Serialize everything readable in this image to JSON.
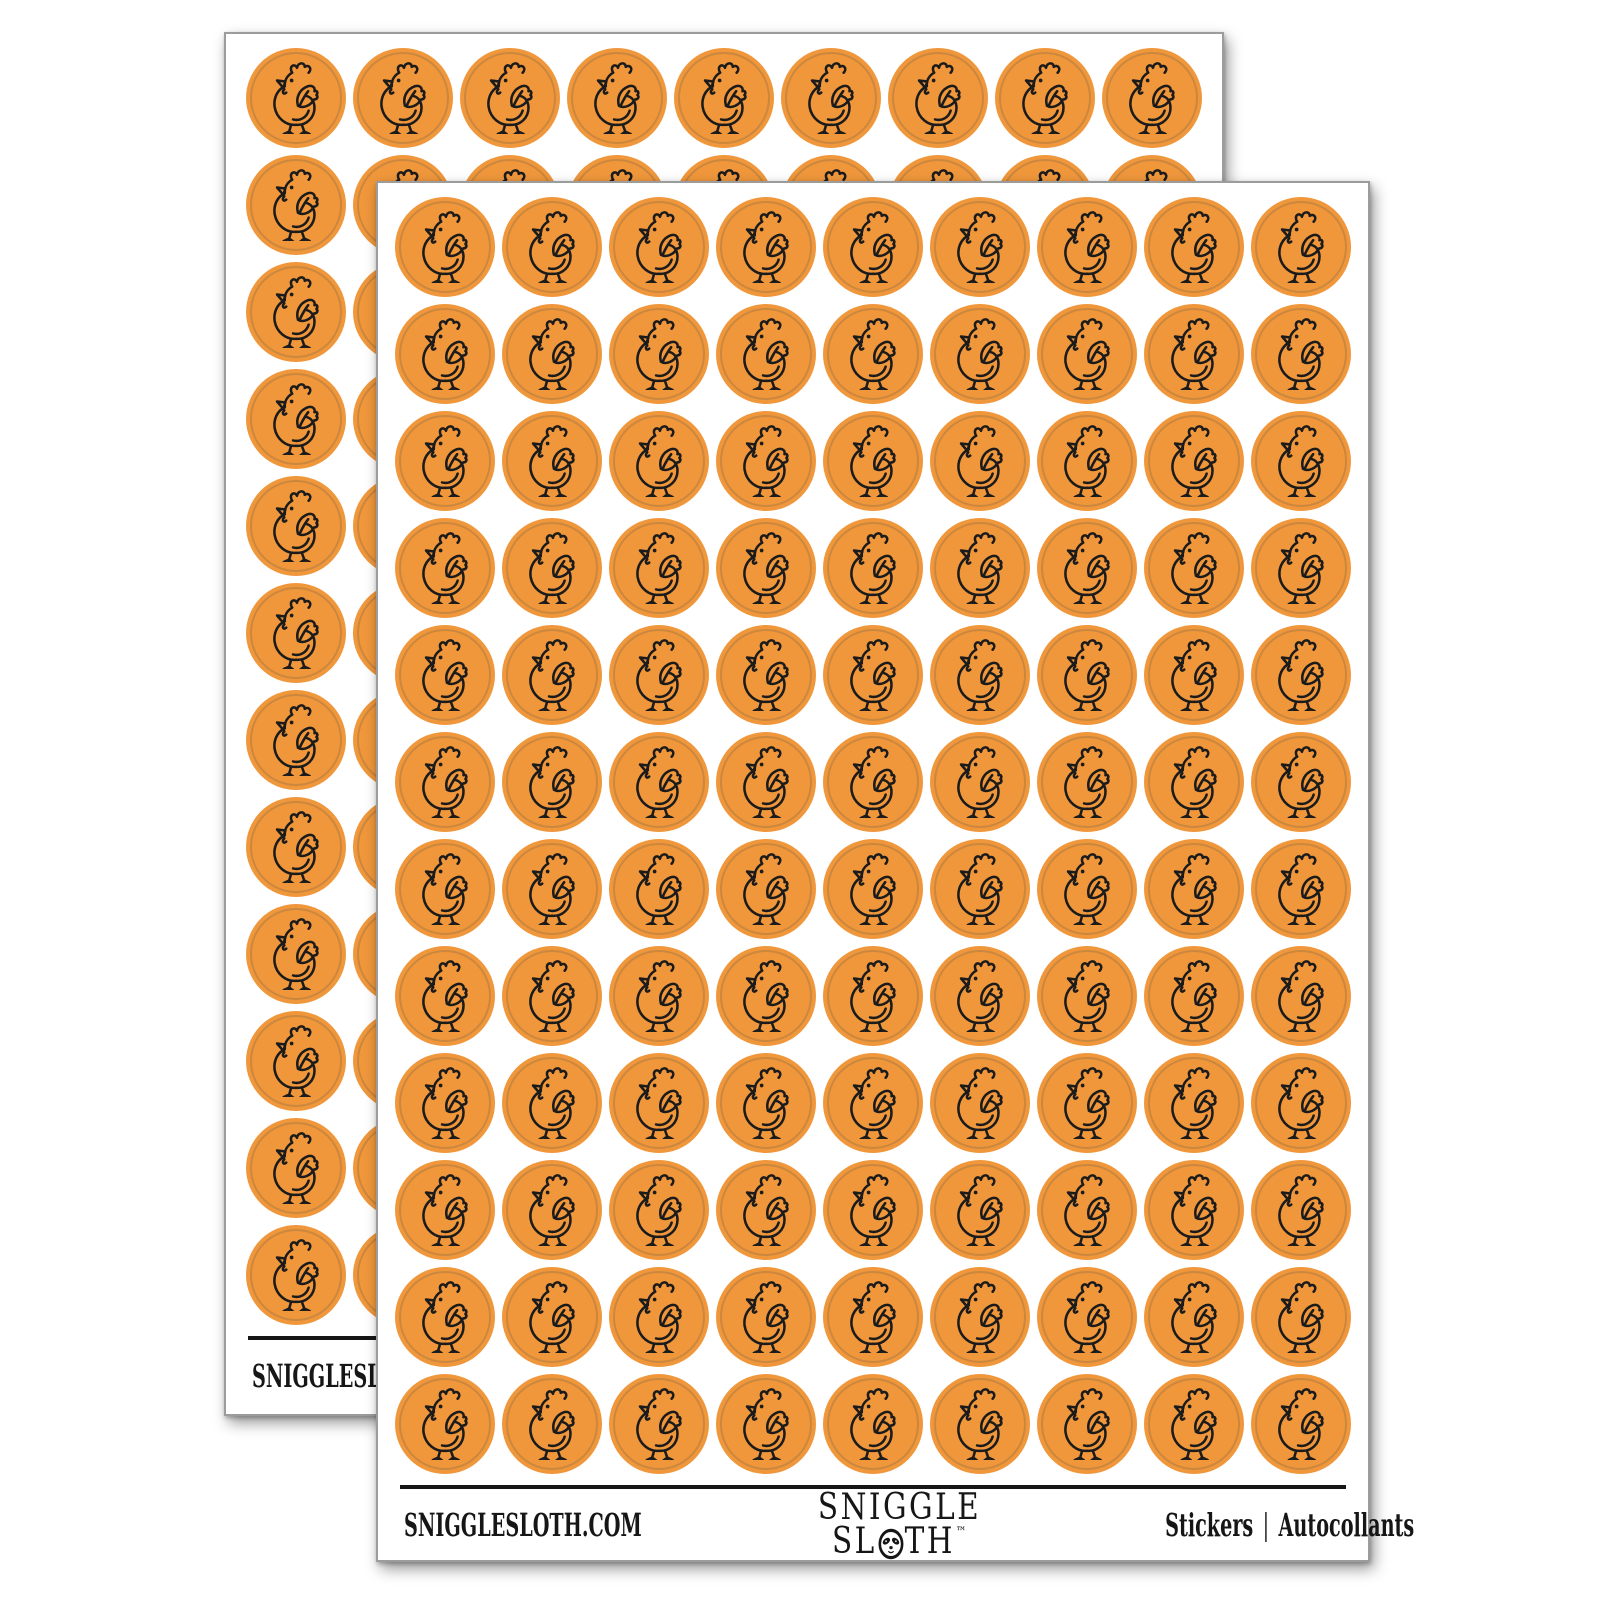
{
  "colors": {
    "sticker_orange": "#F0973C",
    "ring": "rgba(120,98,66,0.30)",
    "ink": "#161616",
    "sheet_border": "#9c9c9c"
  },
  "icons": {
    "chicken": "chicken-icon",
    "sloth_face": "sloth-face-icon"
  },
  "sheets": {
    "count": 2,
    "grid": {
      "rows": 12,
      "cols": 9
    },
    "footer": {
      "website": "SNIGGLESLOTH.COM",
      "brand_top": "SNIGGLE",
      "brand_bottom_left": "SL",
      "brand_bottom_right": "TH",
      "trademark": "™",
      "label_en": "Stickers",
      "separator": "|",
      "label_fr": "Autocollants"
    }
  }
}
